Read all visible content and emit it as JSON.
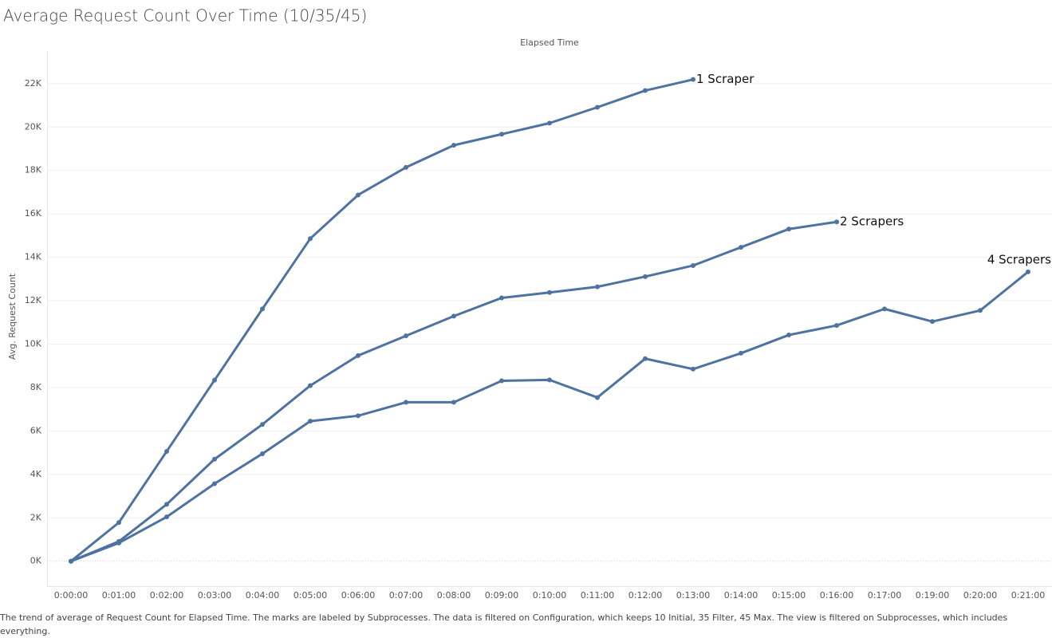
{
  "chart_data": {
    "type": "line",
    "title": "Average Request Count Over Time (10/35/45)",
    "x_axis_label": "Elapsed Time",
    "y_axis_label": "Avg. Request Count",
    "caption": "The trend of average of Request Count for Elapsed Time.  The marks are labeled by Subprocesses. The data is filtered on Configuration, which keeps 10 Initial, 35 Filter, 45 Max. The view is filtered on Subprocesses, which includes everything.",
    "categories": [
      "0:00:00",
      "0:01:00",
      "0:02:00",
      "0:03:00",
      "0:04:00",
      "0:05:00",
      "0:06:00",
      "0:07:00",
      "0:08:00",
      "0:09:00",
      "0:10:00",
      "0:11:00",
      "0:12:00",
      "0:13:00",
      "0:14:00",
      "0:15:00",
      "0:16:00",
      "0:17:00",
      "0:19:00",
      "0:20:00",
      "0:21:00"
    ],
    "series": [
      {
        "name": "1 Scraper",
        "color": "#4e73a0",
        "values": [
          0,
          1780,
          5060,
          8340,
          11620,
          14860,
          16870,
          18140,
          19160,
          19670,
          20180,
          20910,
          21680,
          22190,
          null,
          null,
          null,
          null,
          null,
          null,
          null
        ]
      },
      {
        "name": "2 Scrapers",
        "color": "#4e73a0",
        "values": [
          0,
          910,
          2620,
          4700,
          6300,
          8090,
          9470,
          10380,
          11290,
          12130,
          12380,
          12640,
          13110,
          13620,
          14460,
          15300,
          15630,
          null,
          null,
          null,
          null
        ]
      },
      {
        "name": "4 Scrapers",
        "color": "#4e73a0",
        "values": [
          0,
          840,
          2040,
          3570,
          4950,
          6450,
          6700,
          7320,
          7320,
          8310,
          8350,
          7540,
          9330,
          8850,
          9580,
          10420,
          10860,
          11620,
          11040,
          11550,
          13330
        ]
      }
    ],
    "ylim": [
      -1150,
      23500
    ],
    "yticks": [
      {
        "value": 0,
        "label": "0K"
      },
      {
        "value": 2000,
        "label": "2K"
      },
      {
        "value": 4000,
        "label": "4K"
      },
      {
        "value": 6000,
        "label": "6K"
      },
      {
        "value": 8000,
        "label": "8K"
      },
      {
        "value": 10000,
        "label": "10K"
      },
      {
        "value": 12000,
        "label": "12K"
      },
      {
        "value": 14000,
        "label": "14K"
      },
      {
        "value": 16000,
        "label": "16K"
      },
      {
        "value": 18000,
        "label": "18K"
      },
      {
        "value": 20000,
        "label": "20K"
      },
      {
        "value": 22000,
        "label": "22K"
      }
    ],
    "grid": true
  }
}
